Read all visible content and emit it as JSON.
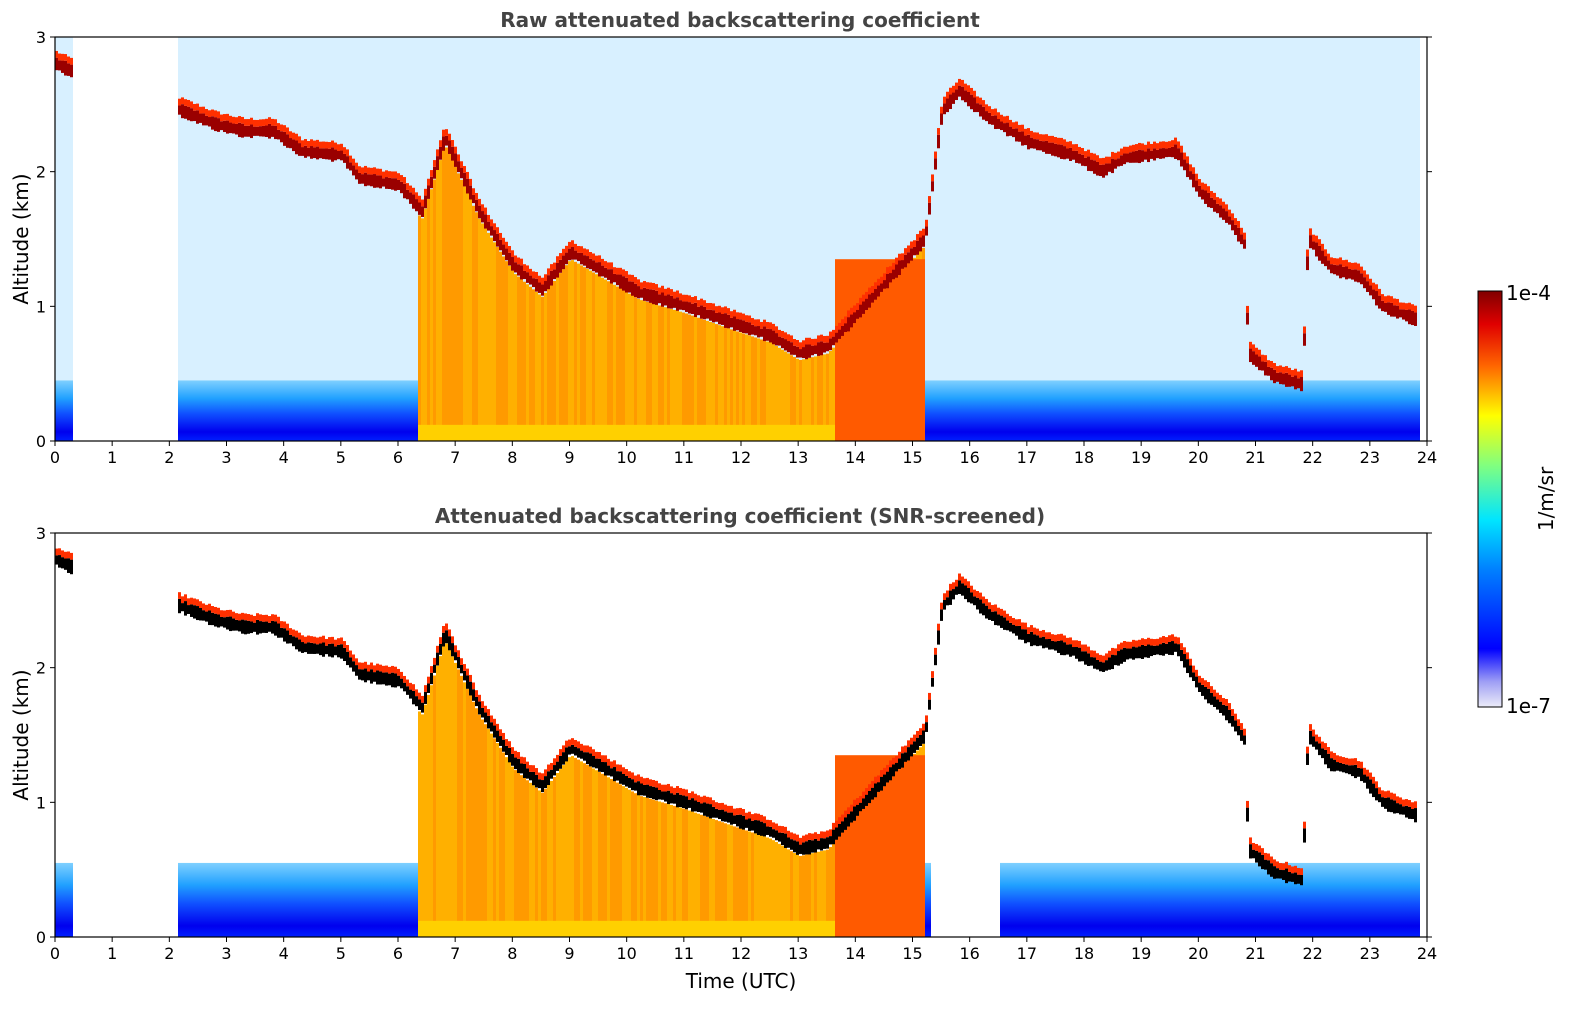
{
  "chart_data": [
    {
      "type": "heatmap",
      "title": "Raw attenuated backscattering coefficient",
      "xlabel": "",
      "ylabel": "Altitude (km)",
      "xlim": [
        0,
        24
      ],
      "ylim": [
        0,
        3
      ],
      "x_ticks": [
        "0",
        "1",
        "2",
        "3",
        "4",
        "5",
        "6",
        "7",
        "8",
        "9",
        "10",
        "11",
        "12",
        "13",
        "14",
        "15",
        "16",
        "17",
        "18",
        "19",
        "20",
        "21",
        "22",
        "23",
        "24"
      ],
      "y_ticks": [
        "0",
        "1",
        "2",
        "3"
      ],
      "no_data_intervals_utc": [
        [
          0.3,
          2.15
        ],
        [
          23.85,
          24
        ]
      ],
      "cloud_layer_km": [
        {
          "t": 0.0,
          "z": 2.8
        },
        {
          "t": 0.25,
          "z": 2.75
        },
        {
          "t": 2.2,
          "z": 2.45
        },
        {
          "t": 2.8,
          "z": 2.35
        },
        {
          "t": 3.3,
          "z": 2.3
        },
        {
          "t": 3.8,
          "z": 2.3
        },
        {
          "t": 4.3,
          "z": 2.15
        },
        {
          "t": 5.0,
          "z": 2.12
        },
        {
          "t": 5.3,
          "z": 1.95
        },
        {
          "t": 6.0,
          "z": 1.9
        },
        {
          "t": 6.4,
          "z": 1.7
        },
        {
          "t": 6.8,
          "z": 2.25
        },
        {
          "t": 7.4,
          "z": 1.7
        },
        {
          "t": 8.0,
          "z": 1.3
        },
        {
          "t": 8.5,
          "z": 1.12
        },
        {
          "t": 9.0,
          "z": 1.4
        },
        {
          "t": 9.6,
          "z": 1.25
        },
        {
          "t": 10.2,
          "z": 1.1
        },
        {
          "t": 11.0,
          "z": 1.0
        },
        {
          "t": 11.8,
          "z": 0.88
        },
        {
          "t": 12.5,
          "z": 0.78
        },
        {
          "t": 13.0,
          "z": 0.65
        },
        {
          "t": 13.5,
          "z": 0.7
        },
        {
          "t": 15.2,
          "z": 1.5
        },
        {
          "t": 15.5,
          "z": 2.45
        },
        {
          "t": 15.8,
          "z": 2.6
        },
        {
          "t": 16.3,
          "z": 2.4
        },
        {
          "t": 17.0,
          "z": 2.22
        },
        {
          "t": 17.8,
          "z": 2.12
        },
        {
          "t": 18.3,
          "z": 2.0
        },
        {
          "t": 18.7,
          "z": 2.1
        },
        {
          "t": 19.6,
          "z": 2.15
        },
        {
          "t": 20.0,
          "z": 1.85
        },
        {
          "t": 20.5,
          "z": 1.65
        },
        {
          "t": 20.8,
          "z": 1.45
        },
        {
          "t": 20.85,
          "z": 0.65
        },
        {
          "t": 21.3,
          "z": 0.48
        },
        {
          "t": 21.8,
          "z": 0.42
        },
        {
          "t": 21.9,
          "z": 1.5
        },
        {
          "t": 22.3,
          "z": 1.28
        },
        {
          "t": 22.8,
          "z": 1.22
        },
        {
          "t": 23.2,
          "z": 1.0
        },
        {
          "t": 23.8,
          "z": 0.9
        }
      ]
    },
    {
      "type": "heatmap",
      "title": "Attenuated backscattering coefficient (SNR-screened)",
      "xlabel": "Time (UTC)",
      "ylabel": "Altitude (km)",
      "xlim": [
        0,
        24
      ],
      "ylim": [
        0,
        3
      ],
      "x_ticks": [
        "0",
        "1",
        "2",
        "3",
        "4",
        "5",
        "6",
        "7",
        "8",
        "9",
        "10",
        "11",
        "12",
        "13",
        "14",
        "15",
        "16",
        "17",
        "18",
        "19",
        "20",
        "21",
        "22",
        "23",
        "24"
      ],
      "y_ticks": [
        "0",
        "1",
        "2",
        "3"
      ],
      "no_data_intervals_utc": [
        [
          0.3,
          2.15
        ],
        [
          23.85,
          24
        ]
      ],
      "screened_saturation_color": "#000000"
    }
  ],
  "colorbar": {
    "label": "1/m/sr",
    "max_label": "1e-4",
    "min_label": "1e-7",
    "scale": "log",
    "colormap": "jet",
    "colors": [
      "#e8e8f5",
      "#0000ff",
      "#00e5ff",
      "#ffff00",
      "#ff3300",
      "#800000"
    ]
  }
}
